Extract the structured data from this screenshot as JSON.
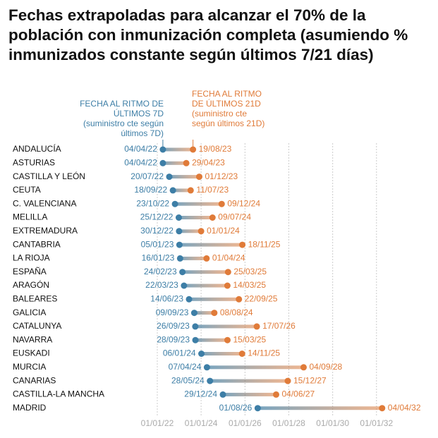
{
  "chart_data": {
    "type": "dumbbell",
    "title": "Fechas extrapoladas para alcanzar el 70% de la población con inmunización completa (asumiendo % inmunizados constante según últimos 7/21 días)",
    "categories": [
      "ANDALUCÍA",
      "ASTURIAS",
      "CASTILLA Y LEÓN",
      "CEUTA",
      "C. VALENCIANA",
      "MELILLA",
      "EXTREMADURA",
      "CANTABRIA",
      "LA RIOJA",
      "ESPAÑA",
      "ARAGÓN",
      "BALEARES",
      "GALICIA",
      "CATALUNYA",
      "NAVARRA",
      "EUSKADI",
      "MURCIA",
      "CANARIAS",
      "CASTILLA-LA MANCHA",
      "MADRID"
    ],
    "series": [
      {
        "name": "FECHA AL RITMO DE ÚLTIMOS 7D",
        "note": "(suministro cte según últimos 7D)",
        "color": "#3d7ea6",
        "values": [
          "04/04/22",
          "04/04/22",
          "20/07/22",
          "18/09/22",
          "23/10/22",
          "25/12/22",
          "30/12/22",
          "05/01/23",
          "16/01/23",
          "24/02/23",
          "22/03/23",
          "14/06/23",
          "09/09/23",
          "26/09/23",
          "28/09/23",
          "06/01/24",
          "07/04/24",
          "28/05/24",
          "29/12/24",
          "01/08/26"
        ]
      },
      {
        "name": "FECHA AL RITMO DE ÚLTIMOS 21D",
        "note": "(suministro cte según últimos 21D)",
        "color": "#e07b39",
        "values": [
          "19/08/23",
          "29/04/23",
          "01/12/23",
          "11/07/23",
          "09/12/24",
          "09/07/24",
          "01/01/24",
          "18/11/25",
          "01/04/24",
          "25/03/25",
          "14/03/25",
          "22/09/25",
          "08/08/24",
          "17/07/26",
          "15/03/25",
          "14/11/25",
          "04/09/28",
          "15/12/27",
          "04/06/27",
          "04/04/32"
        ]
      }
    ],
    "xlim": [
      "01/01/22",
      "01/01/34"
    ],
    "xticks": [
      "01/01/22",
      "01/01/24",
      "01/01/26",
      "01/01/28",
      "01/01/30",
      "01/01/32"
    ],
    "grid": true
  }
}
